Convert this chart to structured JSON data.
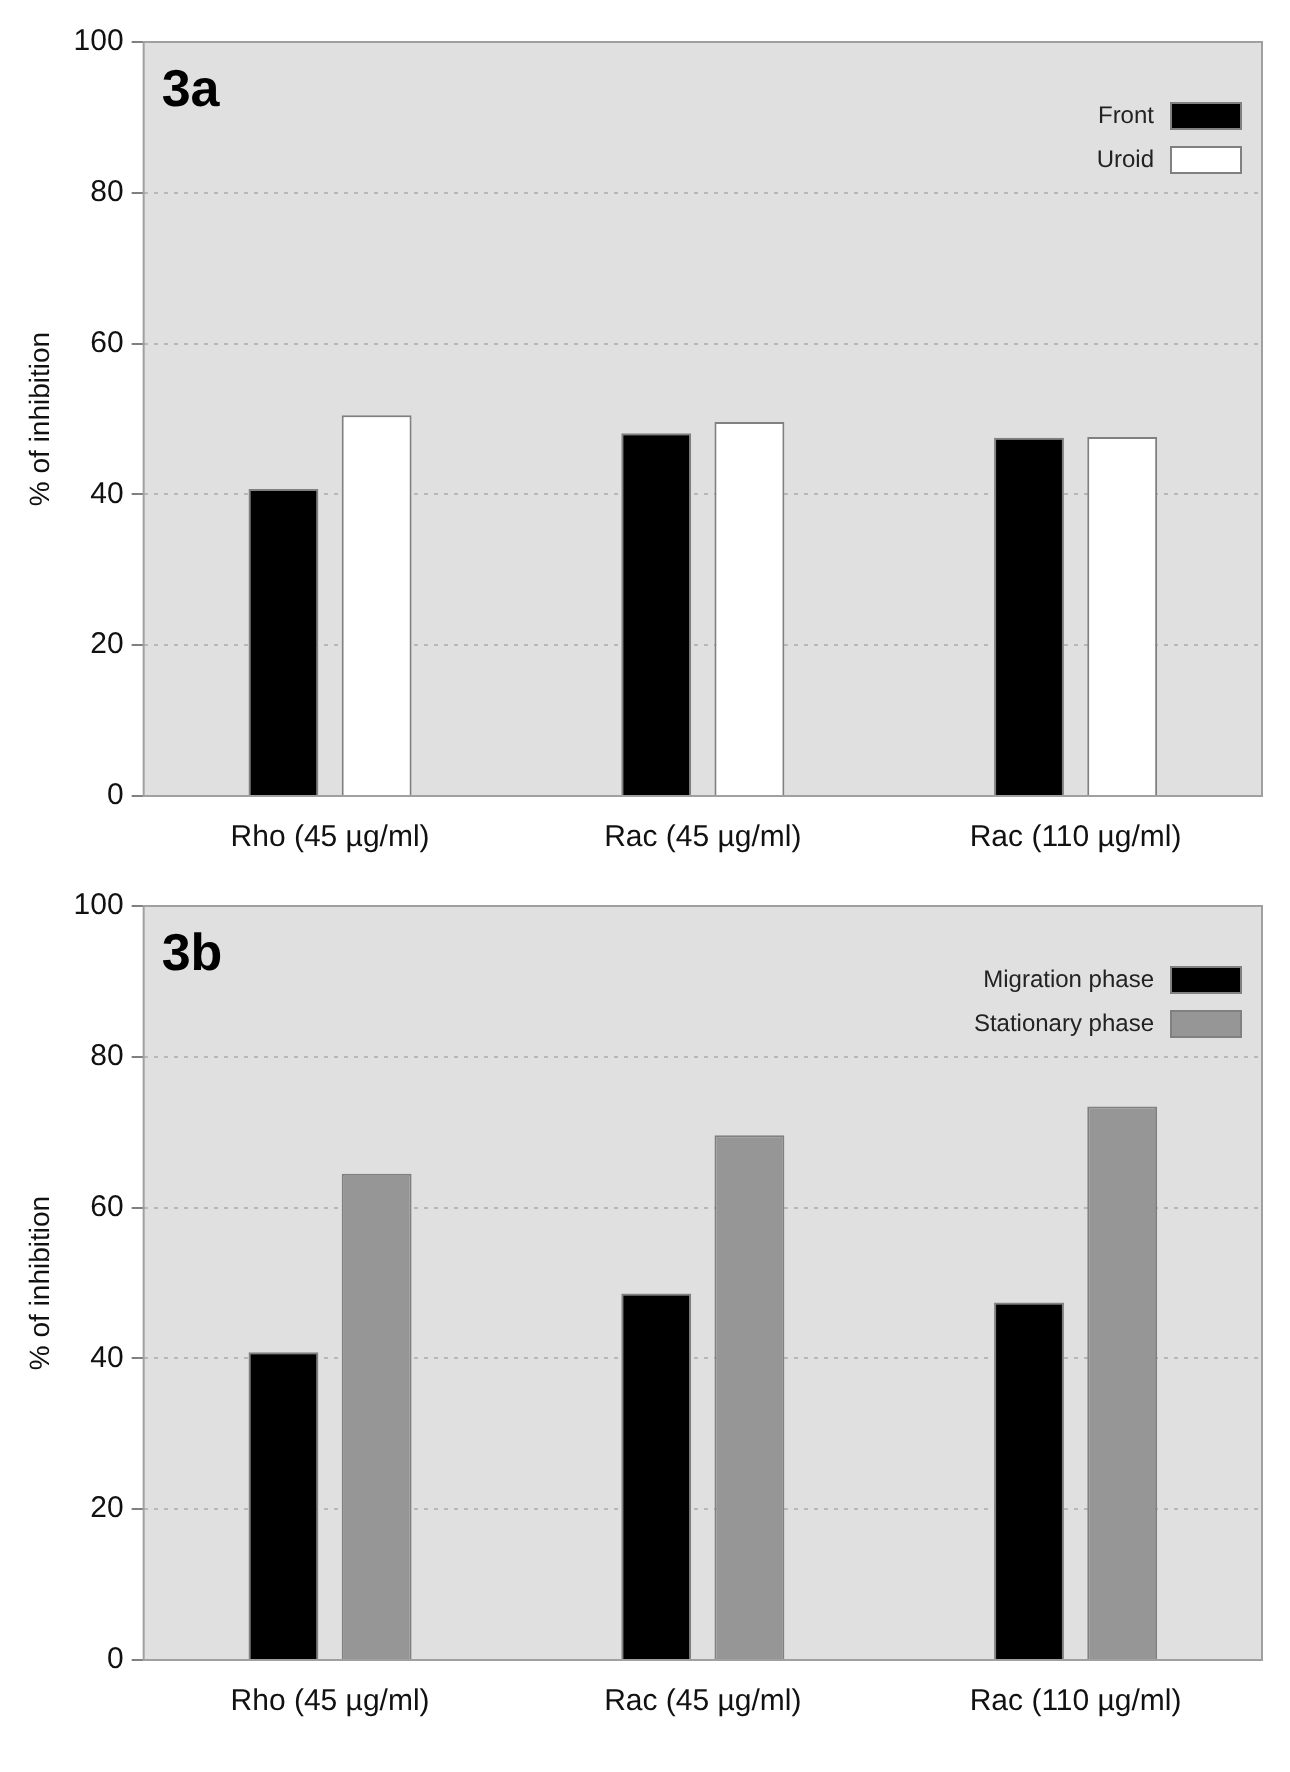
{
  "chart_data": [
    {
      "type": "bar",
      "title": "3a",
      "ylabel": "% of inhibition",
      "categories": [
        "Rho (45 µg/ml)",
        "Rac (45 µg/ml)",
        "Rac (110 µg/ml)"
      ],
      "series": [
        {
          "name": "Front",
          "color": "#000000",
          "values": [
            40.7,
            48.1,
            47.5
          ]
        },
        {
          "name": "Uroid",
          "color": "#ffffff",
          "values": [
            50.5,
            49.6,
            47.6
          ]
        }
      ],
      "ylim": [
        0,
        100
      ],
      "yticks": [
        0,
        20,
        40,
        60,
        80,
        100
      ],
      "grid": "y",
      "legend": "top right"
    },
    {
      "type": "bar",
      "title": "3b",
      "ylabel": "% of inhibition",
      "categories": [
        "Rho (45 µg/ml)",
        "Rac (45 µg/ml)",
        "Rac (110 µg/ml)"
      ],
      "series": [
        {
          "name": "Migration phase",
          "color": "#000000",
          "values": [
            40.8,
            48.6,
            47.4
          ]
        },
        {
          "name": "Stationary phase",
          "color": "#969696",
          "values": [
            64.5,
            69.6,
            73.4
          ]
        }
      ],
      "ylim": [
        0,
        100
      ],
      "yticks": [
        0,
        20,
        40,
        60,
        80,
        100
      ],
      "grid": "y",
      "legend": "top right"
    }
  ]
}
